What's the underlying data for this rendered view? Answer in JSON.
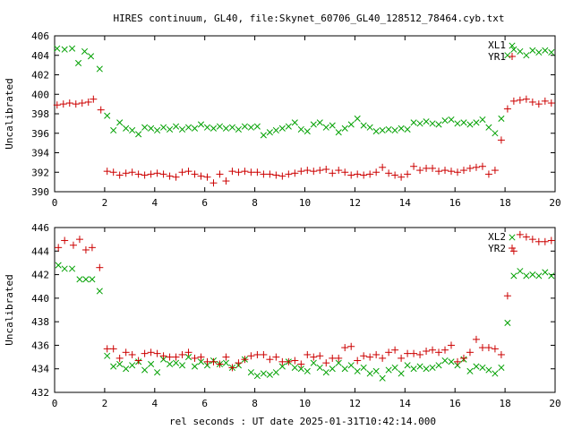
{
  "title": "HIRES continuum, GL40, file:Skynet_60706_GL40_128512_78464.cyb.txt",
  "xlabel": "rel seconds : UT date 2025-01-31T10:42:14.000",
  "colors": {
    "green": "#00a000",
    "red": "#cc0000",
    "axis": "#000000"
  },
  "chart_data": [
    {
      "type": "scatter",
      "ylabel": "Uncalibrated",
      "xlim": [
        0,
        20
      ],
      "ylim": [
        390,
        406
      ],
      "xticks": [
        "0",
        "2",
        "4",
        "6",
        "8",
        "10",
        "12",
        "14",
        "16",
        "18",
        "20"
      ],
      "yticks": [
        "390",
        "392",
        "394",
        "396",
        "398",
        "400",
        "402",
        "404",
        "406"
      ],
      "legend_position": "top-right",
      "series": [
        {
          "name": "XL1",
          "marker": "x",
          "color": "#00a000",
          "x": [
            0.1,
            0.4,
            0.7,
            0.95,
            1.2,
            1.45,
            1.8,
            2.1,
            2.35,
            2.6,
            2.85,
            3.1,
            3.35,
            3.6,
            3.85,
            4.1,
            4.35,
            4.6,
            4.85,
            5.1,
            5.35,
            5.6,
            5.85,
            6.1,
            6.35,
            6.6,
            6.85,
            7.1,
            7.35,
            7.6,
            7.85,
            8.1,
            8.35,
            8.6,
            8.85,
            9.1,
            9.35,
            9.6,
            9.85,
            10.1,
            10.35,
            10.6,
            10.85,
            11.1,
            11.35,
            11.6,
            11.85,
            12.1,
            12.35,
            12.6,
            12.85,
            13.1,
            13.35,
            13.6,
            13.85,
            14.1,
            14.35,
            14.6,
            14.85,
            15.1,
            15.35,
            15.6,
            15.85,
            16.1,
            16.35,
            16.6,
            16.85,
            17.1,
            17.35,
            17.6,
            17.85,
            18.1,
            18.35,
            18.6,
            18.85,
            19.1,
            19.35,
            19.6,
            19.85
          ],
          "y": [
            404.7,
            404.6,
            404.7,
            403.2,
            404.4,
            403.9,
            402.6,
            397.8,
            396.3,
            397.1,
            396.5,
            396.3,
            395.9,
            396.6,
            396.5,
            396.3,
            396.6,
            396.4,
            396.7,
            396.4,
            396.6,
            396.5,
            396.9,
            396.6,
            396.5,
            396.7,
            396.5,
            396.6,
            396.4,
            396.7,
            396.6,
            396.7,
            395.8,
            396.1,
            396.3,
            396.5,
            396.7,
            397.1,
            396.4,
            396.2,
            396.9,
            397.1,
            396.6,
            396.8,
            396.1,
            396.5,
            396.9,
            397.5,
            396.8,
            396.6,
            396.2,
            396.3,
            396.4,
            396.3,
            396.5,
            396.4,
            397.1,
            397.0,
            397.2,
            397.0,
            396.9,
            397.3,
            397.4,
            397.0,
            397.1,
            396.9,
            397.1,
            397.4,
            396.6,
            396.0,
            397.5,
            404.0,
            404.6,
            404.4,
            404.0,
            404.5,
            404.3,
            404.5,
            404.3
          ]
        },
        {
          "name": "YR1",
          "marker": "+",
          "color": "#cc0000",
          "x": [
            0.1,
            0.35,
            0.6,
            0.85,
            1.1,
            1.35,
            1.55,
            1.85,
            2.1,
            2.35,
            2.6,
            2.85,
            3.1,
            3.35,
            3.6,
            3.85,
            4.1,
            4.35,
            4.6,
            4.85,
            5.1,
            5.35,
            5.6,
            5.85,
            6.1,
            6.35,
            6.6,
            6.85,
            7.1,
            7.35,
            7.6,
            7.85,
            8.1,
            8.35,
            8.6,
            8.85,
            9.1,
            9.35,
            9.6,
            9.85,
            10.1,
            10.35,
            10.6,
            10.85,
            11.1,
            11.35,
            11.6,
            11.85,
            12.1,
            12.35,
            12.6,
            12.85,
            13.1,
            13.35,
            13.6,
            13.85,
            14.1,
            14.35,
            14.6,
            14.85,
            15.1,
            15.35,
            15.6,
            15.85,
            16.1,
            16.35,
            16.6,
            16.85,
            17.1,
            17.35,
            17.6,
            17.85,
            18.1,
            18.35,
            18.6,
            18.85,
            19.1,
            19.35,
            19.6,
            19.85
          ],
          "y": [
            398.9,
            399.0,
            399.1,
            399.0,
            399.1,
            399.2,
            399.5,
            398.4,
            392.1,
            392.0,
            391.7,
            391.9,
            392.0,
            391.8,
            391.7,
            391.8,
            391.9,
            391.8,
            391.6,
            391.5,
            392.0,
            392.1,
            391.8,
            391.6,
            391.5,
            390.9,
            391.8,
            391.1,
            392.1,
            392.0,
            392.1,
            392.0,
            392.0,
            391.8,
            391.8,
            391.7,
            391.6,
            391.8,
            391.9,
            392.1,
            392.2,
            392.1,
            392.2,
            392.3,
            391.9,
            392.2,
            392.0,
            391.7,
            391.8,
            391.7,
            391.8,
            392.0,
            392.5,
            391.9,
            391.7,
            391.5,
            391.8,
            392.6,
            392.2,
            392.4,
            392.4,
            392.1,
            392.2,
            392.1,
            392.0,
            392.2,
            392.4,
            392.5,
            392.6,
            391.8,
            392.2,
            395.3,
            398.5,
            399.3,
            399.4,
            399.5,
            399.2,
            399.0,
            399.3,
            399.1
          ]
        }
      ]
    },
    {
      "type": "scatter",
      "ylabel": "Uncalibrated",
      "xlim": [
        0,
        20
      ],
      "ylim": [
        432,
        446
      ],
      "xticks": [
        "0",
        "2",
        "4",
        "6",
        "8",
        "10",
        "12",
        "14",
        "16",
        "18",
        "20"
      ],
      "yticks": [
        "432",
        "434",
        "436",
        "438",
        "440",
        "442",
        "444",
        "446"
      ],
      "legend_position": "top-right",
      "series": [
        {
          "name": "XL2",
          "marker": "x",
          "color": "#00a000",
          "x": [
            0.15,
            0.4,
            0.7,
            1.0,
            1.25,
            1.5,
            1.8,
            2.1,
            2.35,
            2.6,
            2.85,
            3.1,
            3.35,
            3.6,
            3.85,
            4.1,
            4.35,
            4.6,
            4.85,
            5.1,
            5.35,
            5.6,
            5.85,
            6.1,
            6.35,
            6.6,
            6.85,
            7.1,
            7.35,
            7.6,
            7.85,
            8.1,
            8.35,
            8.6,
            8.85,
            9.1,
            9.35,
            9.6,
            9.85,
            10.1,
            10.35,
            10.6,
            10.85,
            11.1,
            11.35,
            11.6,
            11.85,
            12.1,
            12.35,
            12.6,
            12.85,
            13.1,
            13.35,
            13.6,
            13.85,
            14.1,
            14.35,
            14.6,
            14.85,
            15.1,
            15.35,
            15.6,
            15.85,
            16.1,
            16.35,
            16.6,
            16.85,
            17.1,
            17.35,
            17.6,
            17.85,
            18.1,
            18.35,
            18.6,
            18.85,
            19.1,
            19.35,
            19.6,
            19.85
          ],
          "y": [
            442.8,
            442.5,
            442.5,
            441.6,
            441.6,
            441.6,
            440.6,
            435.1,
            434.2,
            434.4,
            434.0,
            434.3,
            434.6,
            433.9,
            434.4,
            433.7,
            434.8,
            434.4,
            434.5,
            434.3,
            435.0,
            434.2,
            434.6,
            434.3,
            434.7,
            434.4,
            434.5,
            434.1,
            434.3,
            434.8,
            433.7,
            433.4,
            433.6,
            433.5,
            433.7,
            434.2,
            434.6,
            434.1,
            434.0,
            433.8,
            434.5,
            434.1,
            433.7,
            434.0,
            434.5,
            434.0,
            434.3,
            433.8,
            434.1,
            433.6,
            433.8,
            433.2,
            433.9,
            434.1,
            433.6,
            434.3,
            434.0,
            434.2,
            434.0,
            434.1,
            434.3,
            434.7,
            434.6,
            434.3,
            434.8,
            433.8,
            434.2,
            434.1,
            433.9,
            433.6,
            434.1,
            437.9,
            441.9,
            442.3,
            441.9,
            442.0,
            441.9,
            442.2,
            441.9
          ]
        },
        {
          "name": "YR2",
          "marker": "+",
          "color": "#cc0000",
          "x": [
            0.15,
            0.4,
            0.75,
            1.0,
            1.25,
            1.5,
            1.8,
            2.1,
            2.35,
            2.6,
            2.85,
            3.1,
            3.35,
            3.6,
            3.85,
            4.1,
            4.35,
            4.6,
            4.85,
            5.1,
            5.35,
            5.6,
            5.85,
            6.1,
            6.35,
            6.6,
            6.85,
            7.1,
            7.35,
            7.6,
            7.85,
            8.1,
            8.35,
            8.6,
            8.85,
            9.1,
            9.35,
            9.6,
            9.85,
            10.1,
            10.35,
            10.6,
            10.85,
            11.1,
            11.35,
            11.6,
            11.85,
            12.1,
            12.35,
            12.6,
            12.85,
            13.1,
            13.35,
            13.6,
            13.85,
            14.1,
            14.35,
            14.6,
            14.85,
            15.1,
            15.35,
            15.6,
            15.85,
            16.1,
            16.35,
            16.6,
            16.85,
            17.1,
            17.35,
            17.6,
            17.85,
            18.1,
            18.35,
            18.6,
            18.85,
            19.1,
            19.35,
            19.6,
            19.85
          ],
          "y": [
            444.3,
            444.9,
            444.5,
            445.0,
            444.1,
            444.3,
            442.6,
            435.7,
            435.7,
            434.9,
            435.4,
            435.2,
            434.7,
            435.3,
            435.4,
            435.3,
            435.1,
            435.0,
            435.0,
            435.2,
            435.4,
            434.9,
            435.0,
            434.6,
            434.6,
            434.4,
            435.0,
            434.1,
            434.5,
            434.8,
            435.1,
            435.2,
            435.2,
            434.8,
            435.0,
            434.6,
            434.6,
            434.7,
            434.4,
            435.2,
            435.0,
            435.1,
            434.5,
            434.9,
            434.9,
            435.8,
            435.9,
            434.7,
            435.1,
            435.0,
            435.2,
            434.9,
            435.4,
            435.6,
            434.9,
            435.3,
            435.3,
            435.2,
            435.5,
            435.6,
            435.4,
            435.6,
            436.0,
            434.6,
            434.9,
            435.4,
            436.5,
            435.8,
            435.8,
            435.7,
            435.2,
            440.2,
            444.0,
            445.4,
            445.2,
            445.0,
            444.8,
            444.8,
            444.9
          ]
        }
      ]
    }
  ]
}
